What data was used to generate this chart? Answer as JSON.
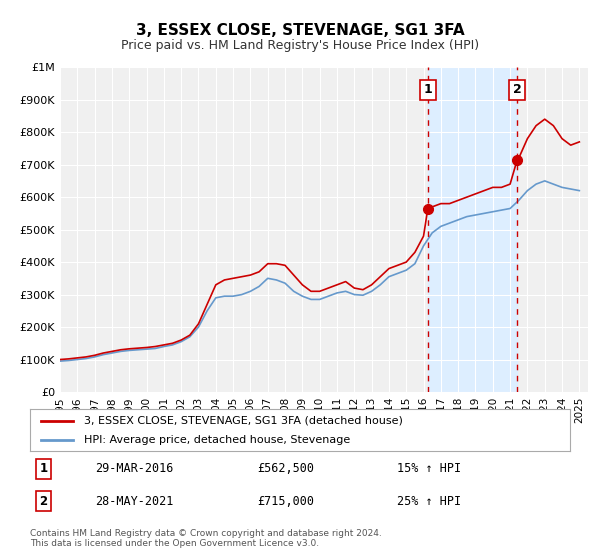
{
  "title": "3, ESSEX CLOSE, STEVENAGE, SG1 3FA",
  "subtitle": "Price paid vs. HM Land Registry's House Price Index (HPI)",
  "xlabel": "",
  "ylabel": "",
  "ylim": [
    0,
    1000000
  ],
  "xlim_start": 1995.0,
  "xlim_end": 2025.5,
  "yticks": [
    0,
    100000,
    200000,
    300000,
    400000,
    500000,
    600000,
    700000,
    800000,
    900000,
    1000000
  ],
  "ytick_labels": [
    "£0",
    "£100K",
    "£200K",
    "£300K",
    "£400K",
    "£500K",
    "£600K",
    "£700K",
    "£800K",
    "£900K",
    "£1M"
  ],
  "xticks": [
    1995,
    1996,
    1997,
    1998,
    1999,
    2000,
    2001,
    2002,
    2003,
    2004,
    2005,
    2006,
    2007,
    2008,
    2009,
    2010,
    2011,
    2012,
    2013,
    2014,
    2015,
    2016,
    2017,
    2018,
    2019,
    2020,
    2021,
    2022,
    2023,
    2024,
    2025
  ],
  "background_color": "#ffffff",
  "plot_bg_color": "#f0f0f0",
  "grid_color": "#ffffff",
  "red_line_color": "#cc0000",
  "blue_line_color": "#6699cc",
  "shade_color": "#ddeeff",
  "vline_color": "#cc0000",
  "marker1_x": 2016.24,
  "marker1_y": 562500,
  "marker2_x": 2021.41,
  "marker2_y": 715000,
  "vline1_x": 2016.24,
  "vline2_x": 2021.41,
  "label1": "1",
  "label2": "2",
  "legend_label_red": "3, ESSEX CLOSE, STEVENAGE, SG1 3FA (detached house)",
  "legend_label_blue": "HPI: Average price, detached house, Stevenage",
  "table_row1_num": "1",
  "table_row1_date": "29-MAR-2016",
  "table_row1_price": "£562,500",
  "table_row1_hpi": "15% ↑ HPI",
  "table_row2_num": "2",
  "table_row2_date": "28-MAY-2021",
  "table_row2_price": "£715,000",
  "table_row2_hpi": "25% ↑ HPI",
  "footer_line1": "Contains HM Land Registry data © Crown copyright and database right 2024.",
  "footer_line2": "This data is licensed under the Open Government Licence v3.0.",
  "red_x": [
    1995.0,
    1995.5,
    1996.0,
    1996.5,
    1997.0,
    1997.5,
    1998.0,
    1998.5,
    1999.0,
    1999.5,
    2000.0,
    2000.5,
    2001.0,
    2001.5,
    2002.0,
    2002.5,
    2003.0,
    2003.5,
    2004.0,
    2004.5,
    2005.0,
    2005.5,
    2006.0,
    2006.5,
    2007.0,
    2007.5,
    2008.0,
    2008.5,
    2009.0,
    2009.5,
    2010.0,
    2010.5,
    2011.0,
    2011.5,
    2012.0,
    2012.5,
    2013.0,
    2013.5,
    2014.0,
    2014.5,
    2015.0,
    2015.5,
    2016.0,
    2016.24,
    2016.5,
    2017.0,
    2017.5,
    2018.0,
    2018.5,
    2019.0,
    2019.5,
    2020.0,
    2020.5,
    2021.0,
    2021.41,
    2021.5,
    2022.0,
    2022.5,
    2023.0,
    2023.5,
    2024.0,
    2024.5,
    2025.0
  ],
  "red_y": [
    100000,
    102000,
    105000,
    108000,
    113000,
    120000,
    125000,
    130000,
    133000,
    135000,
    137000,
    140000,
    145000,
    150000,
    160000,
    175000,
    210000,
    270000,
    330000,
    345000,
    350000,
    355000,
    360000,
    370000,
    395000,
    395000,
    390000,
    360000,
    330000,
    310000,
    310000,
    320000,
    330000,
    340000,
    320000,
    315000,
    330000,
    355000,
    380000,
    390000,
    400000,
    430000,
    480000,
    562500,
    570000,
    580000,
    580000,
    590000,
    600000,
    610000,
    620000,
    630000,
    630000,
    640000,
    715000,
    720000,
    780000,
    820000,
    840000,
    820000,
    780000,
    760000,
    770000
  ],
  "blue_x": [
    1995.0,
    1995.5,
    1996.0,
    1996.5,
    1997.0,
    1997.5,
    1998.0,
    1998.5,
    1999.0,
    1999.5,
    2000.0,
    2000.5,
    2001.0,
    2001.5,
    2002.0,
    2002.5,
    2003.0,
    2003.5,
    2004.0,
    2004.5,
    2005.0,
    2005.5,
    2006.0,
    2006.5,
    2007.0,
    2007.5,
    2008.0,
    2008.5,
    2009.0,
    2009.5,
    2010.0,
    2010.5,
    2011.0,
    2011.5,
    2012.0,
    2012.5,
    2013.0,
    2013.5,
    2014.0,
    2014.5,
    2015.0,
    2015.5,
    2016.0,
    2016.5,
    2017.0,
    2017.5,
    2018.0,
    2018.5,
    2019.0,
    2019.5,
    2020.0,
    2020.5,
    2021.0,
    2021.5,
    2022.0,
    2022.5,
    2023.0,
    2023.5,
    2024.0,
    2024.5,
    2025.0
  ],
  "blue_y": [
    95000,
    97000,
    100000,
    103000,
    108000,
    115000,
    120000,
    125000,
    128000,
    130000,
    132000,
    134000,
    140000,
    145000,
    155000,
    170000,
    200000,
    250000,
    290000,
    295000,
    295000,
    300000,
    310000,
    325000,
    350000,
    345000,
    335000,
    310000,
    295000,
    285000,
    285000,
    295000,
    305000,
    310000,
    300000,
    298000,
    310000,
    330000,
    355000,
    365000,
    375000,
    395000,
    450000,
    490000,
    510000,
    520000,
    530000,
    540000,
    545000,
    550000,
    555000,
    560000,
    565000,
    590000,
    620000,
    640000,
    650000,
    640000,
    630000,
    625000,
    620000
  ]
}
